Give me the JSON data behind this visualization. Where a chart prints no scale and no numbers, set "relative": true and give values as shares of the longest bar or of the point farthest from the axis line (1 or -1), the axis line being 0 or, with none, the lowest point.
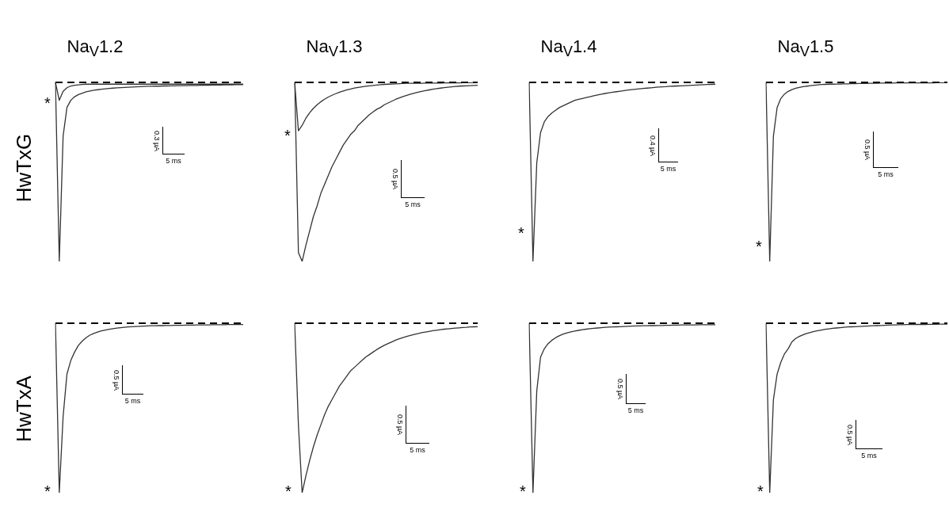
{
  "chart_data": [
    {
      "type": "line",
      "title": "Na$_{V}$1.2",
      "ylabel": "HwTxG",
      "relative": true,
      "categories": [
        null,
        null,
        null,
        null,
        null,
        null,
        null,
        null,
        null,
        null,
        null,
        null,
        null,
        null,
        null,
        null,
        null,
        null,
        null,
        null,
        null,
        null,
        null,
        null,
        null,
        null,
        null,
        null,
        null,
        null,
        null,
        null,
        null,
        null,
        null,
        null,
        null,
        null,
        null,
        null,
        null,
        null,
        null,
        null,
        null,
        null,
        null,
        null,
        null,
        null
      ],
      "series": [
        {
          "color": "#333333",
          "values": [
            0,
            -1,
            -0.3,
            -0.14,
            -0.1,
            -0.08,
            -0.068,
            -0.06,
            -0.053,
            -0.048,
            -0.044,
            -0.041,
            -0.038,
            -0.036,
            -0.034,
            -0.032,
            -0.03,
            -0.029,
            -0.028,
            -0.027,
            -0.026,
            -0.025,
            -0.024,
            -0.023,
            -0.022,
            -0.022,
            -0.021,
            -0.021,
            -0.02,
            -0.02,
            -0.019,
            -0.019,
            -0.018,
            -0.018,
            -0.018,
            -0.017,
            -0.017,
            -0.017,
            -0.016,
            -0.016,
            -0.016,
            -0.015,
            -0.015,
            -0.015,
            -0.014,
            -0.014,
            -0.014,
            -0.013,
            -0.013,
            -0.013
          ]
        },
        {
          "color": "#333333",
          "values": [
            0,
            -0.1,
            -0.05,
            -0.03,
            -0.02,
            -0.016,
            -0.014,
            -0.012,
            -0.01,
            -0.01,
            -0.01,
            -0.01,
            -0.01,
            -0.01,
            -0.01,
            -0.01,
            -0.01,
            -0.01,
            -0.01,
            -0.01,
            -0.01,
            -0.01,
            -0.01,
            -0.01,
            -0.01,
            -0.01,
            -0.01,
            -0.01,
            -0.01,
            -0.01,
            -0.01,
            -0.01,
            -0.01,
            -0.01,
            -0.01,
            -0.01,
            -0.01,
            -0.01,
            -0.01,
            -0.01,
            -0.01,
            -0.01,
            -0.01,
            -0.01,
            -0.01,
            -0.01,
            -0.01,
            -0.01,
            -0.01,
            -0.01
          ]
        }
      ],
      "annotations": [
        "0.3 µA",
        "5 ms",
        "*"
      ]
    },
    {
      "type": "line",
      "title": "Na$_{V}$1.3",
      "relative": true,
      "categories": [
        null,
        null,
        null,
        null,
        null,
        null,
        null,
        null,
        null,
        null,
        null,
        null,
        null,
        null,
        null,
        null,
        null,
        null,
        null,
        null,
        null,
        null,
        null,
        null,
        null,
        null,
        null,
        null,
        null,
        null,
        null,
        null,
        null,
        null,
        null,
        null,
        null,
        null,
        null,
        null,
        null,
        null,
        null,
        null,
        null,
        null,
        null,
        null,
        null,
        null
      ],
      "series": [
        {
          "color": "#333333",
          "values": [
            0,
            -0.95,
            -1,
            -0.91,
            -0.83,
            -0.75,
            -0.69,
            -0.62,
            -0.57,
            -0.52,
            -0.47,
            -0.43,
            -0.39,
            -0.35,
            -0.32,
            -0.29,
            -0.27,
            -0.24,
            -0.22,
            -0.2,
            -0.18,
            -0.165,
            -0.15,
            -0.14,
            -0.125,
            -0.115,
            -0.105,
            -0.095,
            -0.087,
            -0.079,
            -0.072,
            -0.066,
            -0.06,
            -0.055,
            -0.05,
            -0.046,
            -0.042,
            -0.038,
            -0.035,
            -0.032,
            -0.029,
            -0.027,
            -0.025,
            -0.023,
            -0.021,
            -0.02,
            -0.019,
            -0.018,
            -0.017,
            -0.016
          ]
        },
        {
          "color": "#333333",
          "values": [
            0,
            -0.27,
            -0.24,
            -0.2,
            -0.17,
            -0.145,
            -0.125,
            -0.108,
            -0.094,
            -0.082,
            -0.072,
            -0.063,
            -0.055,
            -0.048,
            -0.042,
            -0.037,
            -0.032,
            -0.028,
            -0.025,
            -0.022,
            -0.019,
            -0.017,
            -0.015,
            -0.013,
            -0.011,
            -0.01,
            -0.009,
            -0.008,
            -0.007,
            -0.006,
            -0.005,
            -0.005,
            -0.005,
            -0.005,
            -0.005,
            -0.004,
            -0.004,
            -0.004,
            -0.004,
            -0.004,
            -0.003,
            -0.003,
            -0.003,
            -0.003,
            -0.003,
            -0.002,
            -0.002,
            -0.002,
            -0.002,
            -0.002
          ]
        }
      ],
      "annotations": [
        "0.5 µA",
        "5 ms",
        "*"
      ]
    },
    {
      "type": "line",
      "title": "Na$_{V}$1.4",
      "relative": true,
      "categories": [
        null,
        null,
        null,
        null,
        null,
        null,
        null,
        null,
        null,
        null,
        null,
        null,
        null,
        null,
        null,
        null,
        null,
        null,
        null,
        null,
        null,
        null,
        null,
        null,
        null,
        null,
        null,
        null,
        null,
        null,
        null,
        null,
        null,
        null,
        null,
        null,
        null,
        null,
        null,
        null,
        null,
        null,
        null,
        null,
        null,
        null,
        null,
        null,
        null,
        null
      ],
      "series": [
        {
          "color": "#333333",
          "values": [
            0,
            -1,
            -0.45,
            -0.28,
            -0.22,
            -0.19,
            -0.17,
            -0.155,
            -0.14,
            -0.13,
            -0.12,
            -0.11,
            -0.1,
            -0.095,
            -0.09,
            -0.085,
            -0.08,
            -0.075,
            -0.07,
            -0.066,
            -0.062,
            -0.058,
            -0.055,
            -0.052,
            -0.049,
            -0.046,
            -0.043,
            -0.04,
            -0.038,
            -0.036,
            -0.034,
            -0.032,
            -0.03,
            -0.028,
            -0.026,
            -0.025,
            -0.024,
            -0.022,
            -0.021,
            -0.02,
            -0.019,
            -0.018,
            -0.017,
            -0.016,
            -0.015,
            -0.014,
            -0.013,
            -0.012,
            -0.011,
            -0.01
          ]
        }
      ],
      "annotations": [
        "0.4 µA",
        "5 ms",
        "*"
      ]
    },
    {
      "type": "line",
      "title": "Na$_{V}$1.5",
      "relative": true,
      "categories": [
        null,
        null,
        null,
        null,
        null,
        null,
        null,
        null,
        null,
        null,
        null,
        null,
        null,
        null,
        null,
        null,
        null,
        null,
        null,
        null,
        null,
        null,
        null,
        null,
        null,
        null,
        null,
        null,
        null,
        null,
        null,
        null,
        null,
        null,
        null,
        null,
        null,
        null,
        null,
        null,
        null,
        null,
        null,
        null,
        null,
        null,
        null,
        null,
        null,
        null
      ],
      "series": [
        {
          "color": "#333333",
          "values": [
            0,
            -1,
            -0.3,
            -0.14,
            -0.09,
            -0.065,
            -0.05,
            -0.04,
            -0.033,
            -0.028,
            -0.024,
            -0.021,
            -0.018,
            -0.016,
            -0.014,
            -0.012,
            -0.011,
            -0.01,
            -0.01,
            -0.009,
            -0.009,
            -0.008,
            -0.008,
            -0.007,
            -0.007,
            -0.006,
            -0.006,
            -0.006,
            -0.005,
            -0.005,
            -0.005,
            -0.004,
            -0.004,
            -0.004,
            -0.004,
            -0.003,
            -0.003,
            -0.003,
            -0.003,
            -0.003,
            -0.003,
            -0.003,
            -0.003,
            -0.003,
            -0.003,
            -0.003,
            -0.002,
            -0.002,
            -0.002,
            -0.002
          ]
        }
      ],
      "annotations": [
        "0.5 µA",
        "5 ms",
        "*"
      ]
    },
    {
      "type": "line",
      "ylabel": "HwTxA",
      "relative": true,
      "categories": [
        null,
        null,
        null,
        null,
        null,
        null,
        null,
        null,
        null,
        null,
        null,
        null,
        null,
        null,
        null,
        null,
        null,
        null,
        null,
        null,
        null,
        null,
        null,
        null,
        null,
        null,
        null,
        null,
        null,
        null,
        null,
        null,
        null,
        null,
        null,
        null,
        null,
        null,
        null,
        null,
        null,
        null,
        null,
        null,
        null,
        null,
        null,
        null,
        null,
        null
      ],
      "series": [
        {
          "color": "#333333",
          "values": [
            0,
            -1,
            -0.55,
            -0.3,
            -0.22,
            -0.17,
            -0.13,
            -0.105,
            -0.085,
            -0.07,
            -0.06,
            -0.052,
            -0.045,
            -0.04,
            -0.036,
            -0.032,
            -0.029,
            -0.026,
            -0.024,
            -0.022,
            -0.02,
            -0.019,
            -0.018,
            -0.017,
            -0.016,
            -0.015,
            -0.015,
            -0.014,
            -0.014,
            -0.013,
            -0.013,
            -0.012,
            -0.012,
            -0.012,
            -0.011,
            -0.011,
            -0.011,
            -0.01,
            -0.01,
            -0.01,
            -0.01,
            -0.009,
            -0.009,
            -0.009,
            -0.009,
            -0.008,
            -0.008,
            -0.008,
            -0.008,
            -0.008
          ]
        }
      ],
      "annotations": [
        "0.5 µA",
        "5 ms",
        "*"
      ]
    },
    {
      "type": "line",
      "relative": true,
      "categories": [
        null,
        null,
        null,
        null,
        null,
        null,
        null,
        null,
        null,
        null,
        null,
        null,
        null,
        null,
        null,
        null,
        null,
        null,
        null,
        null,
        null,
        null,
        null,
        null,
        null,
        null,
        null,
        null,
        null,
        null,
        null,
        null,
        null,
        null,
        null,
        null,
        null,
        null,
        null,
        null,
        null,
        null,
        null,
        null,
        null,
        null,
        null,
        null,
        null,
        null
      ],
      "series": [
        {
          "color": "#333333",
          "values": [
            0,
            -0.6,
            -1,
            -0.9,
            -0.81,
            -0.73,
            -0.66,
            -0.6,
            -0.54,
            -0.49,
            -0.45,
            -0.41,
            -0.37,
            -0.34,
            -0.31,
            -0.28,
            -0.26,
            -0.24,
            -0.22,
            -0.2,
            -0.185,
            -0.17,
            -0.155,
            -0.142,
            -0.13,
            -0.12,
            -0.11,
            -0.1,
            -0.092,
            -0.085,
            -0.078,
            -0.072,
            -0.066,
            -0.061,
            -0.056,
            -0.052,
            -0.048,
            -0.044,
            -0.041,
            -0.038,
            -0.035,
            -0.033,
            -0.031,
            -0.029,
            -0.027,
            -0.025,
            -0.024,
            -0.022,
            -0.021,
            -0.02
          ]
        }
      ],
      "annotations": [
        "0.5 µA",
        "5 ms",
        "*"
      ]
    },
    {
      "type": "line",
      "relative": true,
      "categories": [
        null,
        null,
        null,
        null,
        null,
        null,
        null,
        null,
        null,
        null,
        null,
        null,
        null,
        null,
        null,
        null,
        null,
        null,
        null,
        null,
        null,
        null,
        null,
        null,
        null,
        null,
        null,
        null,
        null,
        null,
        null,
        null,
        null,
        null,
        null,
        null,
        null,
        null,
        null,
        null,
        null,
        null,
        null,
        null,
        null,
        null,
        null,
        null,
        null,
        null
      ],
      "series": [
        {
          "color": "#333333",
          "values": [
            0,
            -1,
            -0.4,
            -0.2,
            -0.15,
            -0.12,
            -0.1,
            -0.085,
            -0.073,
            -0.064,
            -0.057,
            -0.051,
            -0.046,
            -0.042,
            -0.038,
            -0.035,
            -0.032,
            -0.03,
            -0.028,
            -0.026,
            -0.024,
            -0.023,
            -0.022,
            -0.021,
            -0.02,
            -0.019,
            -0.018,
            -0.017,
            -0.016,
            -0.016,
            -0.015,
            -0.015,
            -0.014,
            -0.014,
            -0.013,
            -0.013,
            -0.012,
            -0.012,
            -0.011,
            -0.011,
            -0.01,
            -0.01,
            -0.01,
            -0.01,
            -0.01,
            -0.009,
            -0.009,
            -0.009,
            -0.009,
            -0.009
          ]
        }
      ],
      "annotations": [
        "0.5 µA",
        "5 ms",
        "*"
      ]
    },
    {
      "type": "line",
      "relative": true,
      "categories": [
        null,
        null,
        null,
        null,
        null,
        null,
        null,
        null,
        null,
        null,
        null,
        null,
        null,
        null,
        null,
        null,
        null,
        null,
        null,
        null,
        null,
        null,
        null,
        null,
        null,
        null,
        null,
        null,
        null,
        null,
        null,
        null,
        null,
        null,
        null,
        null,
        null,
        null,
        null,
        null,
        null,
        null,
        null,
        null,
        null,
        null,
        null,
        null,
        null,
        null
      ],
      "series": [
        {
          "color": "#333333",
          "values": [
            0,
            -1,
            -0.45,
            -0.3,
            -0.23,
            -0.18,
            -0.15,
            -0.11,
            -0.09,
            -0.078,
            -0.068,
            -0.06,
            -0.054,
            -0.048,
            -0.044,
            -0.04,
            -0.036,
            -0.033,
            -0.03,
            -0.028,
            -0.026,
            -0.024,
            -0.022,
            -0.021,
            -0.02,
            -0.019,
            -0.018,
            -0.017,
            -0.016,
            -0.015,
            -0.014,
            -0.013,
            -0.012,
            -0.011,
            -0.01,
            -0.01,
            -0.009,
            -0.009,
            -0.008,
            -0.008,
            -0.007,
            -0.007,
            -0.007,
            -0.007,
            -0.006,
            -0.006,
            -0.006,
            -0.005,
            -0.005,
            -0.005
          ]
        }
      ],
      "annotations": [
        "0.5 µA",
        "5 ms",
        "*"
      ]
    }
  ]
}
